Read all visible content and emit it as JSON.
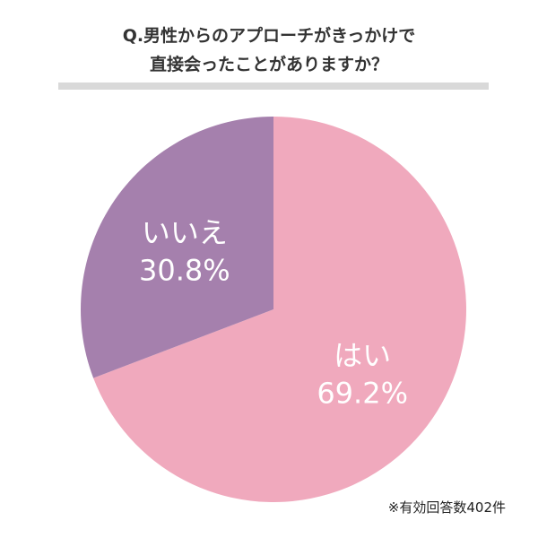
{
  "chart_data": {
    "type": "pie",
    "title": "Q.男性からのアプローチがきっかけで\n直接会ったことがありますか？",
    "title_lines": [
      "Q.男性からのアプローチがきっかけで",
      "直接会ったことがありますか？"
    ],
    "slices": [
      {
        "label": "はい",
        "value": 69.2,
        "display": "69.2%",
        "color": "#f0a9bd"
      },
      {
        "label": "いいえ",
        "value": 30.8,
        "display": "30.8%",
        "color": "#a580ad"
      }
    ],
    "start_angle": "12 o'clock",
    "direction": "clockwise",
    "legend": "none"
  },
  "footnote": "※有効回答数402件"
}
